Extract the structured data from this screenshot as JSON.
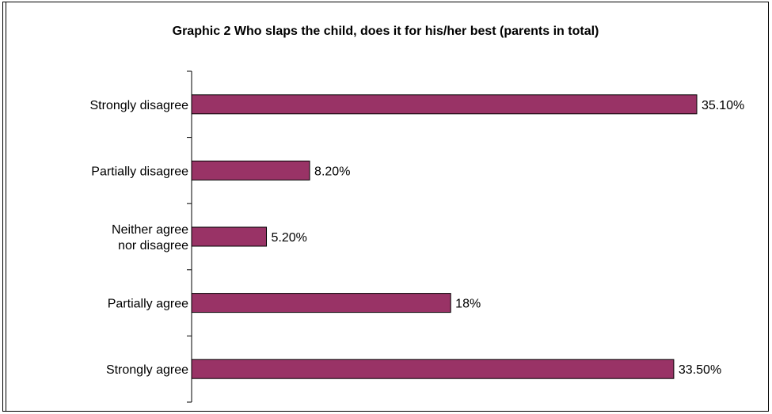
{
  "chart_data": {
    "type": "bar",
    "orientation": "horizontal",
    "title": "Graphic 2 Who slaps the child, does it for his/her best (parents in total)",
    "categories": [
      "Strongly disagree",
      "Partially disagree",
      [
        "Neither agree",
        "nor disagree"
      ],
      "Partially agree",
      "Strongly agree"
    ],
    "values": [
      35.1,
      8.2,
      5.2,
      18.0,
      33.5
    ],
    "value_labels": [
      "35.10%",
      "8.20%",
      "5.20%",
      "18%",
      "33.50%"
    ],
    "xlim": [
      0,
      35.1
    ],
    "xlabel": "",
    "ylabel": "",
    "grid": false,
    "legend": "none",
    "bar_color": "#993366"
  }
}
